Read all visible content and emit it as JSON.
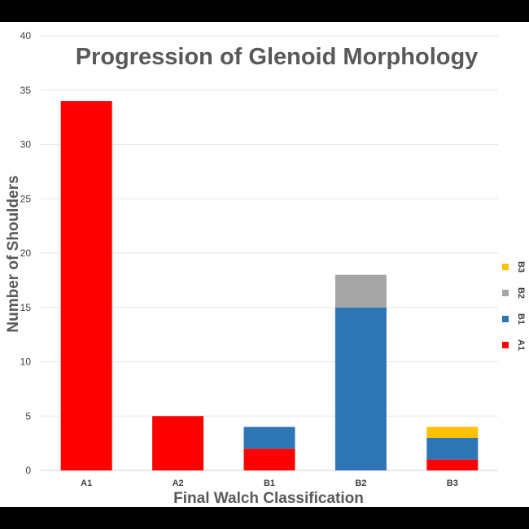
{
  "chart_data": {
    "type": "bar",
    "stacked": true,
    "title": "Progression of Glenoid Morphology",
    "xlabel": "Final Walch Classification",
    "ylabel": "Number of Shoulders",
    "ylim": [
      0,
      40
    ],
    "yticks": [
      0,
      5,
      10,
      15,
      20,
      25,
      30,
      35,
      40
    ],
    "categories": [
      "A1",
      "A2",
      "B1",
      "B2",
      "B3"
    ],
    "series": [
      {
        "name": "A1",
        "color": "#ff0000",
        "values": [
          34,
          5,
          2,
          0,
          1
        ]
      },
      {
        "name": "B1",
        "color": "#2e75b6",
        "values": [
          0,
          0,
          2,
          15,
          2
        ]
      },
      {
        "name": "B2",
        "color": "#a5a5a5",
        "values": [
          0,
          0,
          0,
          3,
          0
        ]
      },
      {
        "name": "B3",
        "color": "#ffc000",
        "values": [
          0,
          0,
          0,
          0,
          1
        ]
      }
    ],
    "grid": true,
    "legend_position": "right"
  }
}
